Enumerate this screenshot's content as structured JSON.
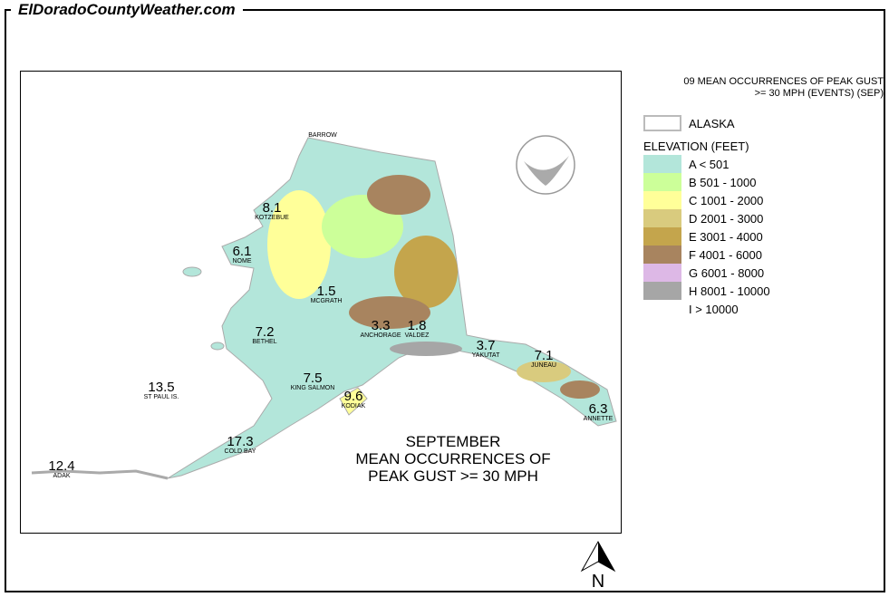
{
  "site_title": "ElDoradoCountyWeather.com",
  "legend": {
    "title": "09 MEAN OCCURRENCES OF PEAK GUST\n>= 30 MPH (EVENTS) (SEP)",
    "state_label": "ALASKA",
    "elevation_title": "ELEVATION (FEET)",
    "classes": [
      {
        "label": "A < 501",
        "color": "#b3e6da"
      },
      {
        "label": "B 501 - 1000",
        "color": "#ccff99"
      },
      {
        "label": "C 1001 - 2000",
        "color": "#ffff99"
      },
      {
        "label": "D 2001 - 3000",
        "color": "#d9cb7e"
      },
      {
        "label": "E 3001 - 4000",
        "color": "#c4a54c"
      },
      {
        "label": "F 4001 - 6000",
        "color": "#a8845f"
      },
      {
        "label": "G 6001 - 8000",
        "color": "#ddb8e6"
      },
      {
        "label": "H 8001 - 10000",
        "color": "#a6a6a6"
      },
      {
        "label": "I > 10000",
        "color": "#ffffff"
      }
    ]
  },
  "map_title": "SEPTEMBER\nMEAN OCCURRENCES OF\nPEAK GUST >= 30 MPH",
  "logo_text": "NOAA",
  "north_label": "N",
  "stations": [
    {
      "name": "BARROW",
      "value": ""
    },
    {
      "name": "KOTZEBUE",
      "value": "8.1"
    },
    {
      "name": "NOME",
      "value": "6.1"
    },
    {
      "name": "MCGRATH",
      "value": "1.5"
    },
    {
      "name": "BETHEL",
      "value": "7.2"
    },
    {
      "name": "ANCHORAGE",
      "value": "3.3"
    },
    {
      "name": "VALDEZ",
      "value": "1.8"
    },
    {
      "name": "YAKUTAT",
      "value": "3.7"
    },
    {
      "name": "JUNEAU",
      "value": "7.1"
    },
    {
      "name": "ANNETTE",
      "value": "6.3"
    },
    {
      "name": "KING SALMON",
      "value": "7.5"
    },
    {
      "name": "KODIAK",
      "value": "9.6"
    },
    {
      "name": "ST PAUL IS.",
      "value": "13.5"
    },
    {
      "name": "COLD BAY",
      "value": "17.3"
    },
    {
      "name": "ADAK",
      "value": "12.4"
    }
  ]
}
